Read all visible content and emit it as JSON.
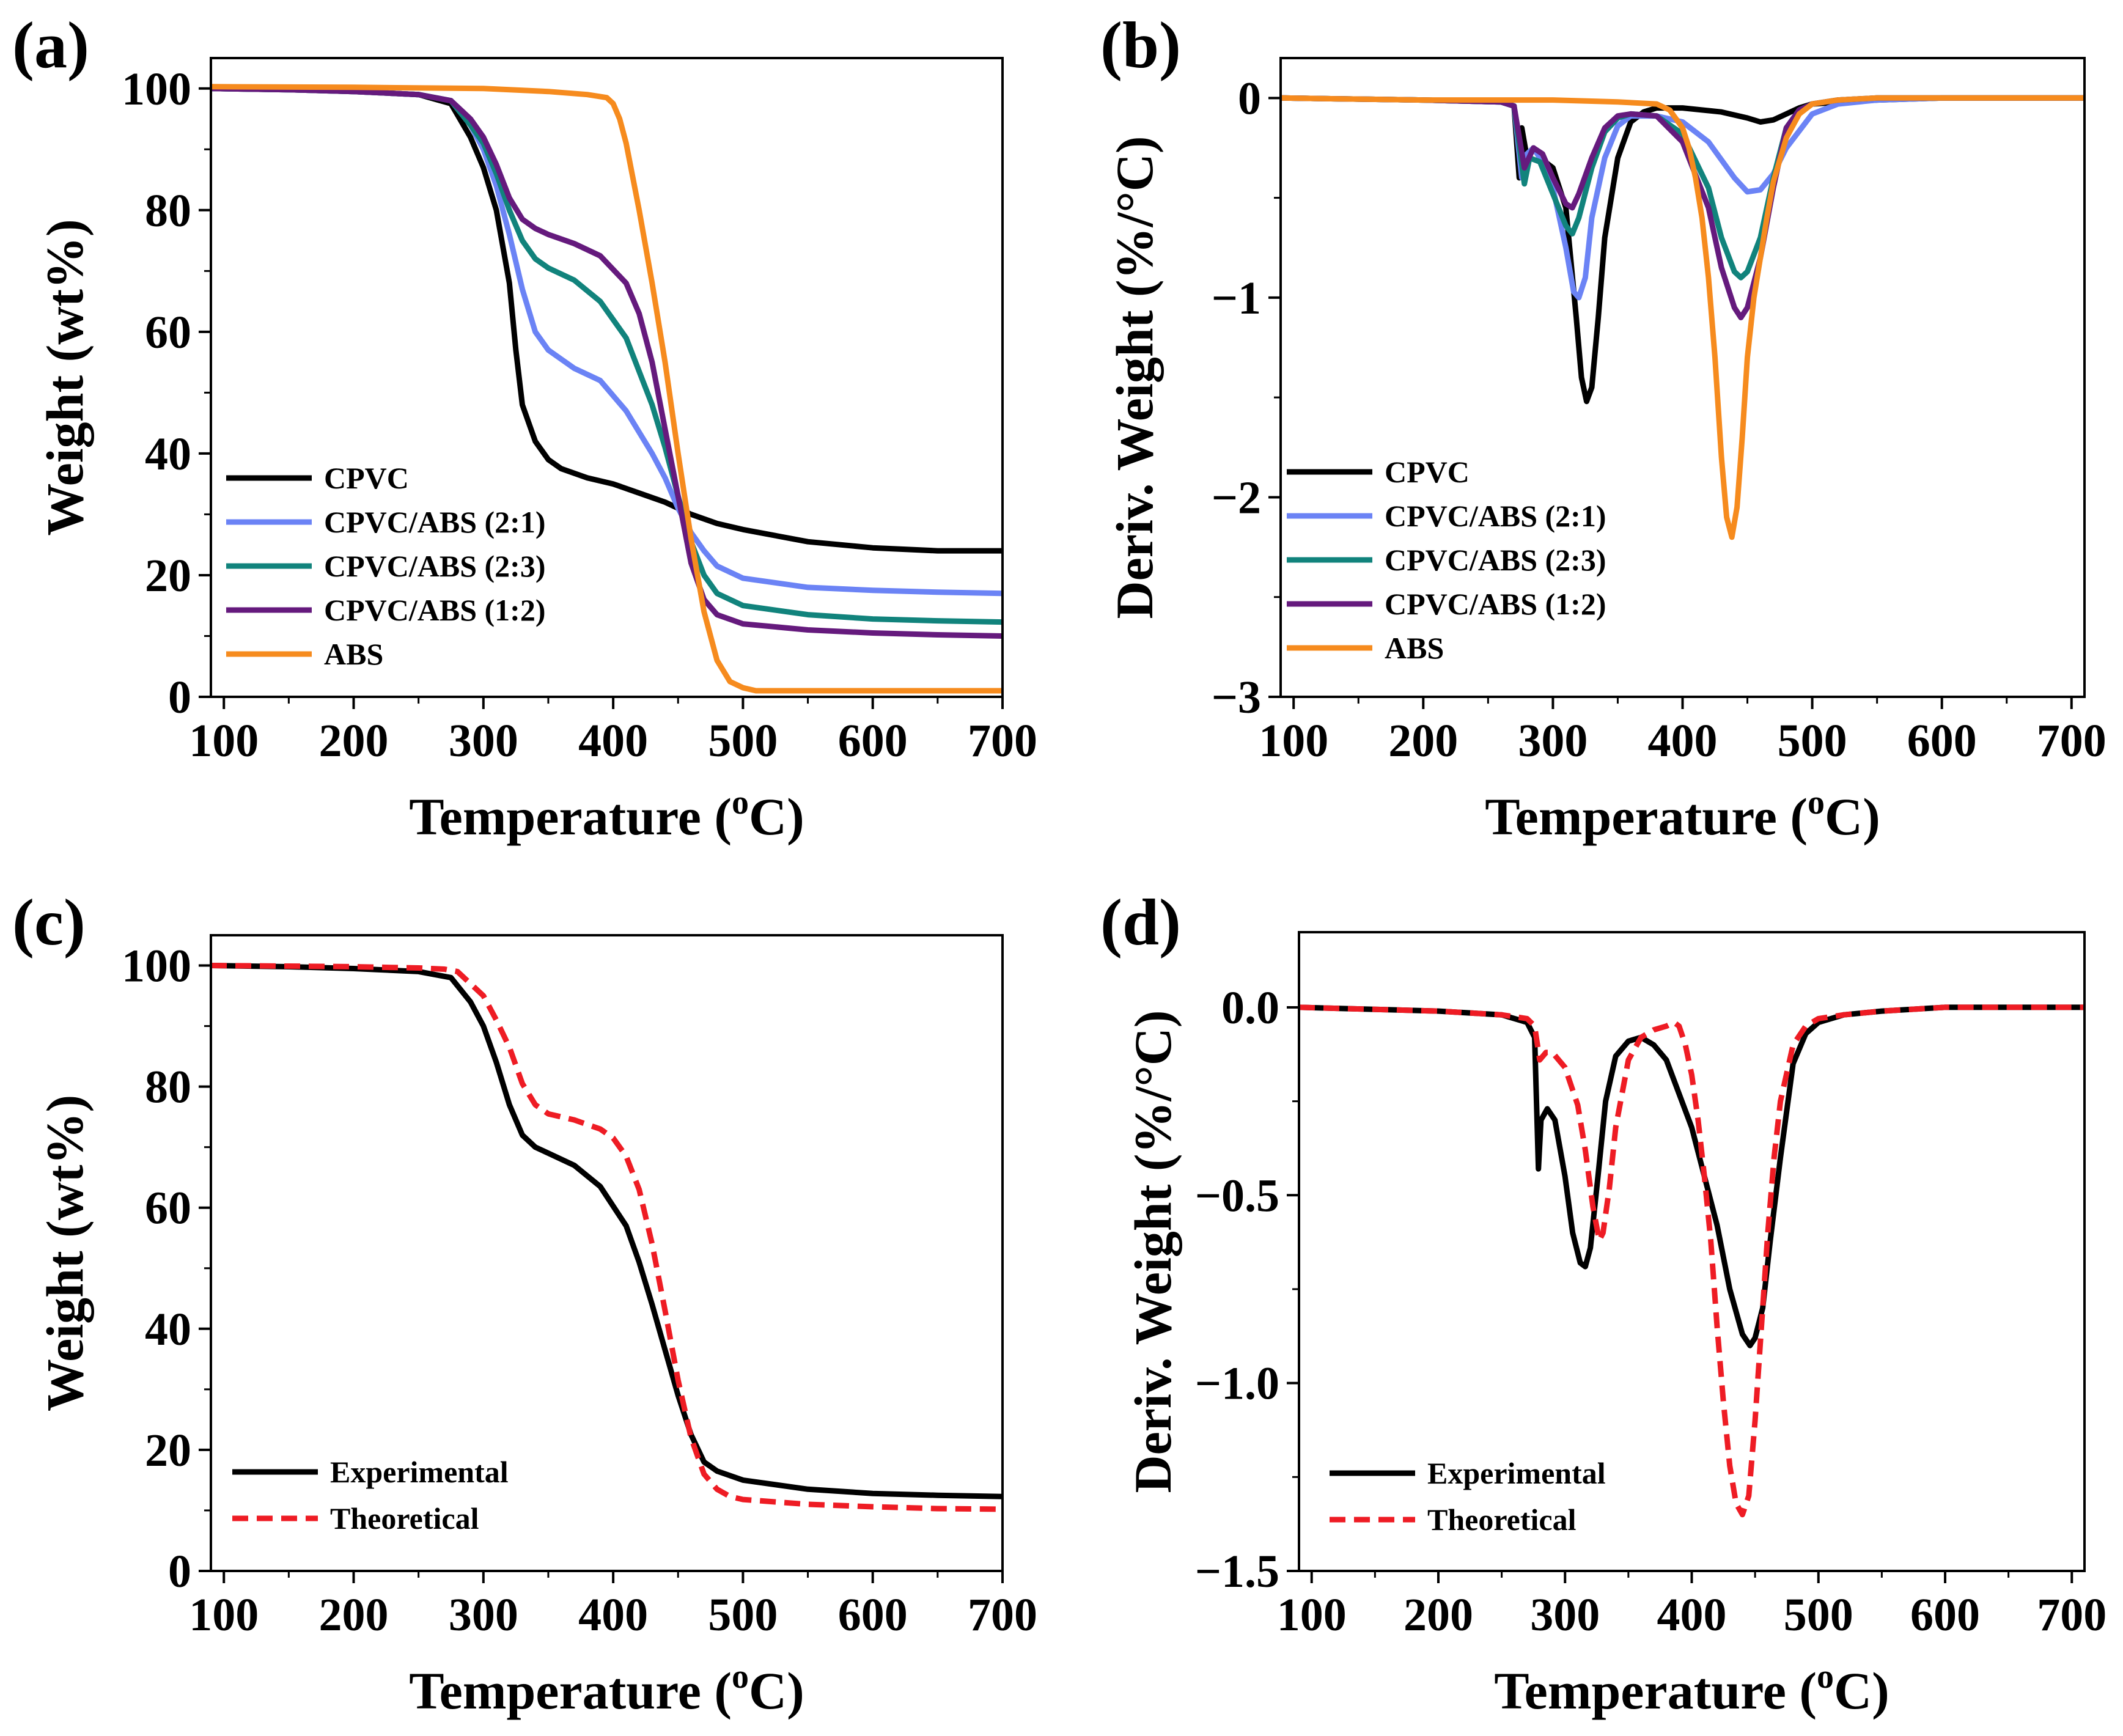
{
  "chart_data": [
    {
      "panel_label": "(a)",
      "type": "line",
      "xlabel": "Temperature (",
      "xlabel_sup": "o",
      "xlabel_suffix": "C)",
      "ylabel": "Weight (wt%)",
      "xlim": [
        90,
        700
      ],
      "ylim": [
        0,
        105
      ],
      "xticks": [
        100,
        200,
        300,
        400,
        500,
        600,
        700
      ],
      "yticks": [
        0,
        20,
        40,
        60,
        80,
        100
      ],
      "legend_position": "bottom-left",
      "series": [
        {
          "name": "CPVC",
          "color": "#000000",
          "dash": "solid",
          "x": [
            90,
            150,
            200,
            250,
            275,
            290,
            300,
            310,
            320,
            325,
            330,
            340,
            350,
            360,
            380,
            400,
            420,
            440,
            460,
            480,
            500,
            550,
            600,
            650,
            700
          ],
          "y": [
            100,
            99.8,
            99.5,
            99,
            97.5,
            92,
            87,
            80,
            68,
            57,
            48,
            42,
            39,
            37.5,
            36,
            35,
            33.5,
            32,
            30,
            28.5,
            27.5,
            25.5,
            24.5,
            24,
            24
          ]
        },
        {
          "name": "CPVC/ABS (2:1)",
          "color": "#6b83f5",
          "dash": "solid",
          "x": [
            90,
            150,
            200,
            250,
            275,
            290,
            300,
            310,
            320,
            330,
            340,
            350,
            370,
            390,
            410,
            430,
            440,
            450,
            460,
            470,
            480,
            500,
            550,
            600,
            650,
            700
          ],
          "y": [
            100,
            99.8,
            99.5,
            99,
            98,
            94,
            90,
            84,
            76,
            67,
            60,
            57,
            54,
            52,
            47,
            40,
            36,
            31,
            27,
            24,
            21.5,
            19.5,
            18,
            17.5,
            17.2,
            17
          ]
        },
        {
          "name": "CPVC/ABS (2:3)",
          "color": "#11837c",
          "dash": "solid",
          "x": [
            90,
            150,
            200,
            250,
            275,
            290,
            300,
            310,
            320,
            330,
            340,
            350,
            370,
            390,
            410,
            430,
            440,
            450,
            460,
            470,
            480,
            500,
            550,
            600,
            650,
            700
          ],
          "y": [
            100,
            99.8,
            99.5,
            99,
            98,
            94,
            91,
            86,
            80,
            75,
            72,
            70.5,
            68.5,
            65,
            59,
            48,
            41,
            33,
            25.5,
            20,
            17,
            15,
            13.5,
            12.8,
            12.5,
            12.3
          ]
        },
        {
          "name": "CPVC/ABS (1:2)",
          "color": "#651a7d",
          "dash": "solid",
          "x": [
            90,
            150,
            200,
            250,
            275,
            290,
            300,
            310,
            320,
            330,
            340,
            350,
            370,
            390,
            410,
            420,
            430,
            440,
            450,
            460,
            470,
            480,
            500,
            550,
            600,
            650,
            700
          ],
          "y": [
            100,
            99.8,
            99.5,
            99,
            98,
            95,
            92,
            87.5,
            82,
            78.5,
            77,
            76,
            74.5,
            72.5,
            68,
            63,
            55,
            44,
            33,
            22,
            16,
            13.5,
            12,
            11,
            10.5,
            10.2,
            10
          ]
        },
        {
          "name": "ABS",
          "color": "#f68b1e",
          "dash": "solid",
          "x": [
            90,
            200,
            300,
            350,
            380,
            395,
            400,
            405,
            410,
            420,
            430,
            440,
            450,
            460,
            470,
            480,
            490,
            500,
            510,
            550,
            600,
            700
          ],
          "y": [
            100.3,
            100.2,
            100,
            99.5,
            99,
            98.5,
            97.5,
            95,
            91,
            80,
            68,
            55,
            40,
            26,
            14,
            6,
            2.5,
            1.5,
            1,
            1,
            1,
            1
          ]
        }
      ]
    },
    {
      "panel_label": "(b)",
      "type": "line",
      "xlabel": "Temperature (",
      "xlabel_sup": "o",
      "xlabel_suffix": "C)",
      "ylabel": "Deriv. Weight (%/°C)",
      "xlim": [
        90,
        710
      ],
      "ylim": [
        -3,
        0.2
      ],
      "xticks": [
        100,
        200,
        300,
        400,
        500,
        600,
        700
      ],
      "yticks": [
        -3,
        -2,
        -1,
        0
      ],
      "legend_position": "bottom-left",
      "series": [
        {
          "name": "CPVC",
          "color": "#000000",
          "dash": "solid",
          "x": [
            90,
            200,
            260,
            270,
            274,
            276,
            280,
            285,
            290,
            300,
            310,
            318,
            322,
            326,
            330,
            335,
            340,
            350,
            360,
            370,
            380,
            400,
            430,
            450,
            460,
            470,
            480,
            490,
            500,
            550,
            600,
            710
          ],
          "y": [
            0,
            -0.01,
            -0.02,
            -0.04,
            -0.4,
            -0.15,
            -0.3,
            -0.25,
            -0.3,
            -0.35,
            -0.55,
            -1.1,
            -1.4,
            -1.52,
            -1.45,
            -1.1,
            -0.7,
            -0.3,
            -0.12,
            -0.07,
            -0.05,
            -0.05,
            -0.07,
            -0.1,
            -0.12,
            -0.11,
            -0.08,
            -0.05,
            -0.03,
            -0.01,
            0,
            0
          ]
        },
        {
          "name": "CPVC/ABS (2:1)",
          "color": "#6b83f5",
          "dash": "solid",
          "x": [
            90,
            200,
            260,
            270,
            276,
            280,
            285,
            290,
            300,
            310,
            316,
            320,
            325,
            330,
            340,
            350,
            360,
            380,
            400,
            420,
            440,
            450,
            460,
            470,
            480,
            500,
            520,
            550,
            600,
            710
          ],
          "y": [
            0,
            -0.01,
            -0.02,
            -0.04,
            -0.4,
            -0.28,
            -0.25,
            -0.3,
            -0.45,
            -0.75,
            -0.97,
            -1.0,
            -0.9,
            -0.6,
            -0.3,
            -0.14,
            -0.09,
            -0.09,
            -0.12,
            -0.22,
            -0.4,
            -0.47,
            -0.46,
            -0.38,
            -0.25,
            -0.08,
            -0.03,
            -0.01,
            0,
            0
          ]
        },
        {
          "name": "CPVC/ABS (2:3)",
          "color": "#11837c",
          "dash": "solid",
          "x": [
            90,
            200,
            260,
            270,
            278,
            282,
            290,
            300,
            310,
            315,
            320,
            330,
            340,
            350,
            360,
            380,
            400,
            420,
            430,
            440,
            445,
            450,
            460,
            470,
            480,
            490,
            500,
            520,
            550,
            710
          ],
          "y": [
            0,
            -0.01,
            -0.02,
            -0.04,
            -0.43,
            -0.3,
            -0.32,
            -0.48,
            -0.64,
            -0.68,
            -0.6,
            -0.35,
            -0.17,
            -0.1,
            -0.08,
            -0.09,
            -0.18,
            -0.45,
            -0.7,
            -0.87,
            -0.9,
            -0.87,
            -0.7,
            -0.4,
            -0.15,
            -0.06,
            -0.03,
            -0.01,
            0,
            0
          ]
        },
        {
          "name": "CPVC/ABS (1:2)",
          "color": "#651a7d",
          "dash": "solid",
          "x": [
            90,
            200,
            260,
            270,
            278,
            285,
            292,
            300,
            310,
            315,
            320,
            330,
            340,
            350,
            360,
            380,
            400,
            420,
            430,
            440,
            445,
            450,
            460,
            470,
            480,
            490,
            500,
            520,
            550,
            710
          ],
          "y": [
            0,
            -0.01,
            -0.02,
            -0.04,
            -0.35,
            -0.25,
            -0.28,
            -0.4,
            -0.53,
            -0.55,
            -0.48,
            -0.3,
            -0.15,
            -0.09,
            -0.08,
            -0.09,
            -0.22,
            -0.55,
            -0.85,
            -1.05,
            -1.1,
            -1.05,
            -0.8,
            -0.45,
            -0.15,
            -0.06,
            -0.03,
            -0.01,
            0,
            0
          ]
        },
        {
          "name": "ABS",
          "color": "#f68b1e",
          "dash": "solid",
          "x": [
            90,
            200,
            300,
            350,
            380,
            390,
            400,
            405,
            410,
            415,
            420,
            425,
            430,
            434,
            438,
            442,
            446,
            450,
            455,
            460,
            465,
            470,
            480,
            490,
            500,
            520,
            550,
            600,
            710
          ],
          "y": [
            0,
            -0.01,
            -0.01,
            -0.02,
            -0.03,
            -0.06,
            -0.15,
            -0.25,
            -0.4,
            -0.6,
            -0.9,
            -1.3,
            -1.8,
            -2.1,
            -2.2,
            -2.05,
            -1.7,
            -1.3,
            -1.0,
            -0.8,
            -0.6,
            -0.42,
            -0.2,
            -0.08,
            -0.03,
            -0.01,
            0,
            0,
            0
          ]
        }
      ]
    },
    {
      "panel_label": "(c)",
      "type": "line",
      "xlabel": "Temperature (",
      "xlabel_sup": "o",
      "xlabel_suffix": "C)",
      "ylabel": "Weight (wt%)",
      "xlim": [
        90,
        700
      ],
      "ylim": [
        0,
        105
      ],
      "xticks": [
        100,
        200,
        300,
        400,
        500,
        600,
        700
      ],
      "yticks": [
        0,
        20,
        40,
        60,
        80,
        100
      ],
      "legend_position": "bottom-left",
      "series": [
        {
          "name": "Experimental",
          "color": "#000000",
          "dash": "solid",
          "x": [
            90,
            150,
            200,
            250,
            275,
            290,
            300,
            310,
            320,
            330,
            340,
            350,
            370,
            390,
            410,
            420,
            430,
            440,
            450,
            460,
            470,
            480,
            500,
            550,
            600,
            650,
            700
          ],
          "y": [
            100,
            99.8,
            99.5,
            99,
            98,
            94,
            90,
            84,
            77,
            72,
            70,
            69,
            67,
            63.5,
            57,
            51,
            44,
            36.5,
            29,
            22.5,
            18,
            16.5,
            15,
            13.5,
            12.8,
            12.5,
            12.3
          ]
        },
        {
          "name": "Theoretical",
          "color": "#ee1c24",
          "dash": "dashed",
          "x": [
            90,
            150,
            200,
            250,
            270,
            280,
            290,
            300,
            310,
            320,
            330,
            340,
            350,
            370,
            390,
            400,
            410,
            420,
            430,
            440,
            450,
            460,
            470,
            480,
            490,
            500,
            550,
            600,
            650,
            700
          ],
          "y": [
            100,
            99.9,
            99.8,
            99.6,
            99.4,
            99,
            97,
            95,
            91,
            86.5,
            80.5,
            77,
            75.5,
            74.5,
            73,
            71.5,
            68.5,
            63,
            54,
            43,
            31.5,
            22,
            16,
            13.5,
            12.3,
            11.8,
            11,
            10.6,
            10.3,
            10.2
          ]
        }
      ]
    },
    {
      "panel_label": "(d)",
      "type": "line",
      "xlabel": "Temperature (",
      "xlabel_sup": "o",
      "xlabel_suffix": "C)",
      "ylabel": "Deriv. Weight (%/°C)",
      "xlim": [
        90,
        710
      ],
      "ylim": [
        -1.5,
        0.2
      ],
      "xticks": [
        100,
        200,
        300,
        400,
        500,
        600,
        700
      ],
      "yticks": [
        -1.5,
        -1.0,
        -0.5,
        0.0
      ],
      "ytick_labels": [
        "−1.5",
        "−1.0",
        "−0.5",
        "0.0"
      ],
      "legend_position": "bottom-left",
      "series": [
        {
          "name": "Experimental",
          "color": "#000000",
          "dash": "solid",
          "x": [
            90,
            200,
            250,
            270,
            276,
            279,
            281,
            286,
            292,
            300,
            306,
            312,
            316,
            320,
            326,
            332,
            340,
            350,
            360,
            370,
            380,
            400,
            420,
            430,
            440,
            446,
            450,
            456,
            462,
            470,
            480,
            490,
            500,
            520,
            550,
            600,
            710
          ],
          "y": [
            0,
            -0.01,
            -0.02,
            -0.04,
            -0.08,
            -0.43,
            -0.3,
            -0.27,
            -0.3,
            -0.45,
            -0.6,
            -0.68,
            -0.69,
            -0.64,
            -0.45,
            -0.25,
            -0.13,
            -0.09,
            -0.08,
            -0.1,
            -0.14,
            -0.32,
            -0.58,
            -0.75,
            -0.87,
            -0.9,
            -0.88,
            -0.8,
            -0.62,
            -0.4,
            -0.15,
            -0.07,
            -0.04,
            -0.02,
            -0.01,
            0,
            0
          ]
        },
        {
          "name": "Theoretical",
          "color": "#ee1c24",
          "dash": "dashed",
          "x": [
            90,
            200,
            250,
            270,
            276,
            280,
            285,
            290,
            300,
            310,
            316,
            322,
            327,
            330,
            335,
            340,
            350,
            360,
            370,
            380,
            386,
            390,
            395,
            400,
            405,
            410,
            415,
            420,
            425,
            430,
            435,
            440,
            445,
            450,
            455,
            460,
            465,
            470,
            480,
            490,
            500,
            520,
            550,
            600,
            710
          ],
          "y": [
            0,
            -0.01,
            -0.02,
            -0.03,
            -0.05,
            -0.14,
            -0.12,
            -0.12,
            -0.16,
            -0.26,
            -0.38,
            -0.53,
            -0.62,
            -0.6,
            -0.48,
            -0.32,
            -0.14,
            -0.08,
            -0.06,
            -0.05,
            -0.04,
            -0.05,
            -0.1,
            -0.18,
            -0.3,
            -0.45,
            -0.62,
            -0.85,
            -1.05,
            -1.22,
            -1.32,
            -1.35,
            -1.3,
            -1.1,
            -0.85,
            -0.6,
            -0.4,
            -0.25,
            -0.1,
            -0.05,
            -0.03,
            -0.02,
            -0.01,
            0,
            0
          ]
        }
      ]
    }
  ]
}
